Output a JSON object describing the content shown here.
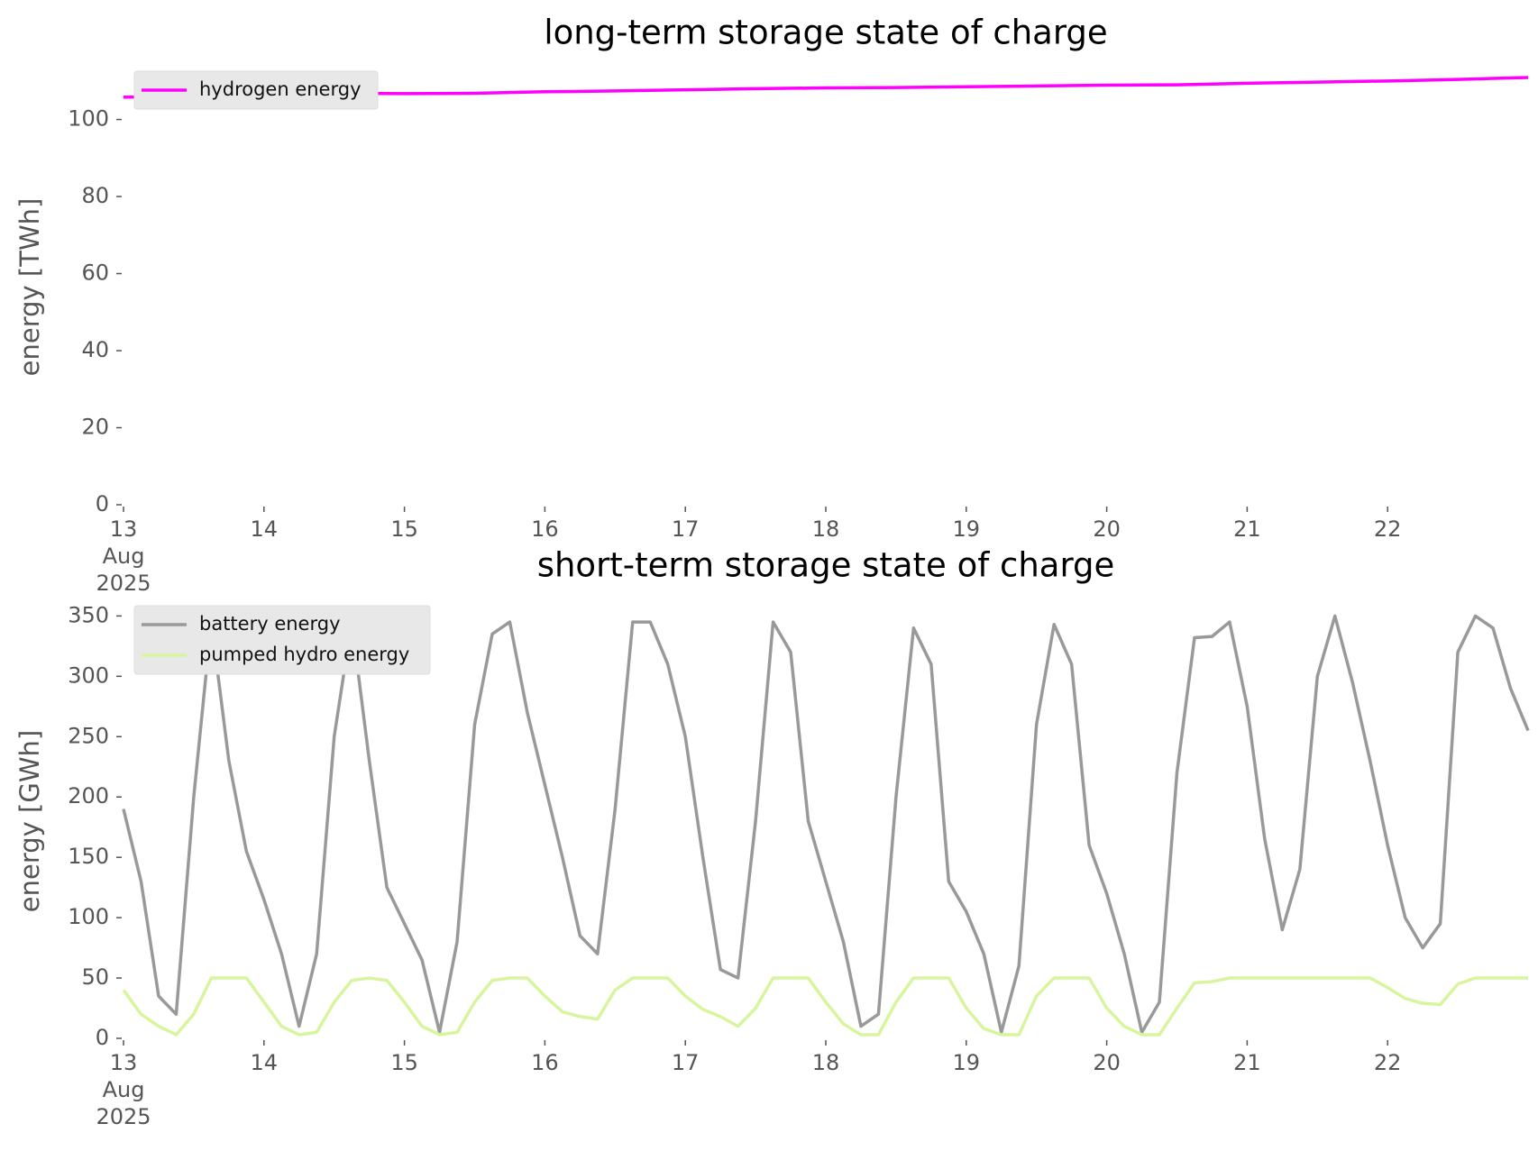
{
  "chart_data": [
    {
      "type": "line",
      "title": "long-term storage state of charge",
      "y_label": "energy [TWh]",
      "x": [
        13,
        13.5,
        14,
        14.5,
        15,
        15.5,
        16,
        16.5,
        17,
        17.5,
        18,
        18.5,
        19,
        19.5,
        20,
        20.5,
        21,
        21.5,
        22,
        22.5,
        23
      ],
      "series": [
        {
          "name": "hydrogen energy",
          "color": "#ff00ff",
          "values": [
            105.8,
            106.0,
            106.5,
            106.8,
            106.7,
            106.8,
            107.2,
            107.4,
            107.7,
            108.0,
            108.2,
            108.3,
            108.5,
            108.7,
            108.9,
            109.0,
            109.4,
            109.7,
            110.0,
            110.4,
            110.9
          ]
        }
      ],
      "xlim": [
        13,
        23
      ],
      "xticks": [
        {
          "value": 13,
          "label": "13\nAug\n2025"
        },
        14,
        15,
        16,
        17,
        18,
        19,
        20,
        21,
        22
      ],
      "ylim": [
        0,
        113
      ],
      "yticks": [
        0,
        20,
        40,
        60,
        80,
        100
      ],
      "grid": false,
      "legend": "upper left"
    },
    {
      "type": "line",
      "title": "short-term storage state of charge",
      "y_label": "energy [GWh]",
      "x": [
        13,
        13.125,
        13.25,
        13.375,
        13.5,
        13.625,
        13.75,
        13.875,
        14,
        14.125,
        14.25,
        14.375,
        14.5,
        14.625,
        14.75,
        14.875,
        15,
        15.125,
        15.25,
        15.375,
        15.5,
        15.625,
        15.75,
        15.875,
        16,
        16.125,
        16.25,
        16.375,
        16.5,
        16.625,
        16.75,
        16.875,
        17,
        17.125,
        17.25,
        17.375,
        17.5,
        17.625,
        17.75,
        17.875,
        18,
        18.125,
        18.25,
        18.375,
        18.5,
        18.625,
        18.75,
        18.875,
        19,
        19.125,
        19.25,
        19.375,
        19.5,
        19.625,
        19.75,
        19.875,
        20,
        20.125,
        20.25,
        20.375,
        20.5,
        20.625,
        20.75,
        20.875,
        21,
        21.125,
        21.25,
        21.375,
        21.5,
        21.625,
        21.75,
        21.875,
        22,
        22.125,
        22.25,
        22.375,
        22.5,
        22.625,
        22.75,
        22.875,
        23
      ],
      "series": [
        {
          "name": "battery energy",
          "color": "#999999",
          "values": [
            190,
            130,
            35,
            20,
            200,
            345,
            230,
            155,
            115,
            70,
            10,
            70,
            250,
            345,
            230,
            125,
            95,
            65,
            5,
            80,
            260,
            335,
            345,
            270,
            210,
            150,
            85,
            70,
            190,
            345,
            345,
            310,
            250,
            150,
            57,
            50,
            180,
            345,
            320,
            180,
            130,
            80,
            10,
            20,
            200,
            340,
            310,
            130,
            105,
            70,
            5,
            60,
            260,
            343,
            310,
            160,
            120,
            70,
            5,
            30,
            220,
            332,
            333,
            345,
            275,
            165,
            90,
            140,
            300,
            350,
            295,
            230,
            160,
            100,
            75,
            95,
            320,
            350,
            340,
            290,
            255
          ]
        },
        {
          "name": "pumped hydro energy",
          "color": "#d8f59e",
          "values": [
            40,
            20,
            10,
            3,
            20,
            50,
            50,
            50,
            30,
            10,
            3,
            5,
            30,
            48,
            50,
            48,
            30,
            10,
            3,
            5,
            30,
            48,
            50,
            50,
            35,
            22,
            18,
            16,
            40,
            50,
            50,
            50,
            35,
            24,
            18,
            10,
            25,
            50,
            50,
            50,
            30,
            12,
            3,
            3,
            30,
            50,
            50,
            50,
            25,
            8,
            3,
            3,
            35,
            50,
            50,
            50,
            25,
            10,
            3,
            3,
            25,
            46,
            47,
            50,
            50,
            50,
            50,
            50,
            50,
            50,
            50,
            50,
            42,
            33,
            29,
            28,
            45,
            50,
            50,
            50,
            50
          ]
        }
      ],
      "xlim": [
        13,
        23
      ],
      "xticks": [
        {
          "value": 13,
          "label": "13\nAug\n2025"
        },
        14,
        15,
        16,
        17,
        18,
        19,
        20,
        21,
        22
      ],
      "ylim": [
        0,
        360
      ],
      "yticks": [
        0,
        50,
        100,
        150,
        200,
        250,
        300,
        350
      ],
      "grid": false,
      "legend": "upper left"
    }
  ]
}
